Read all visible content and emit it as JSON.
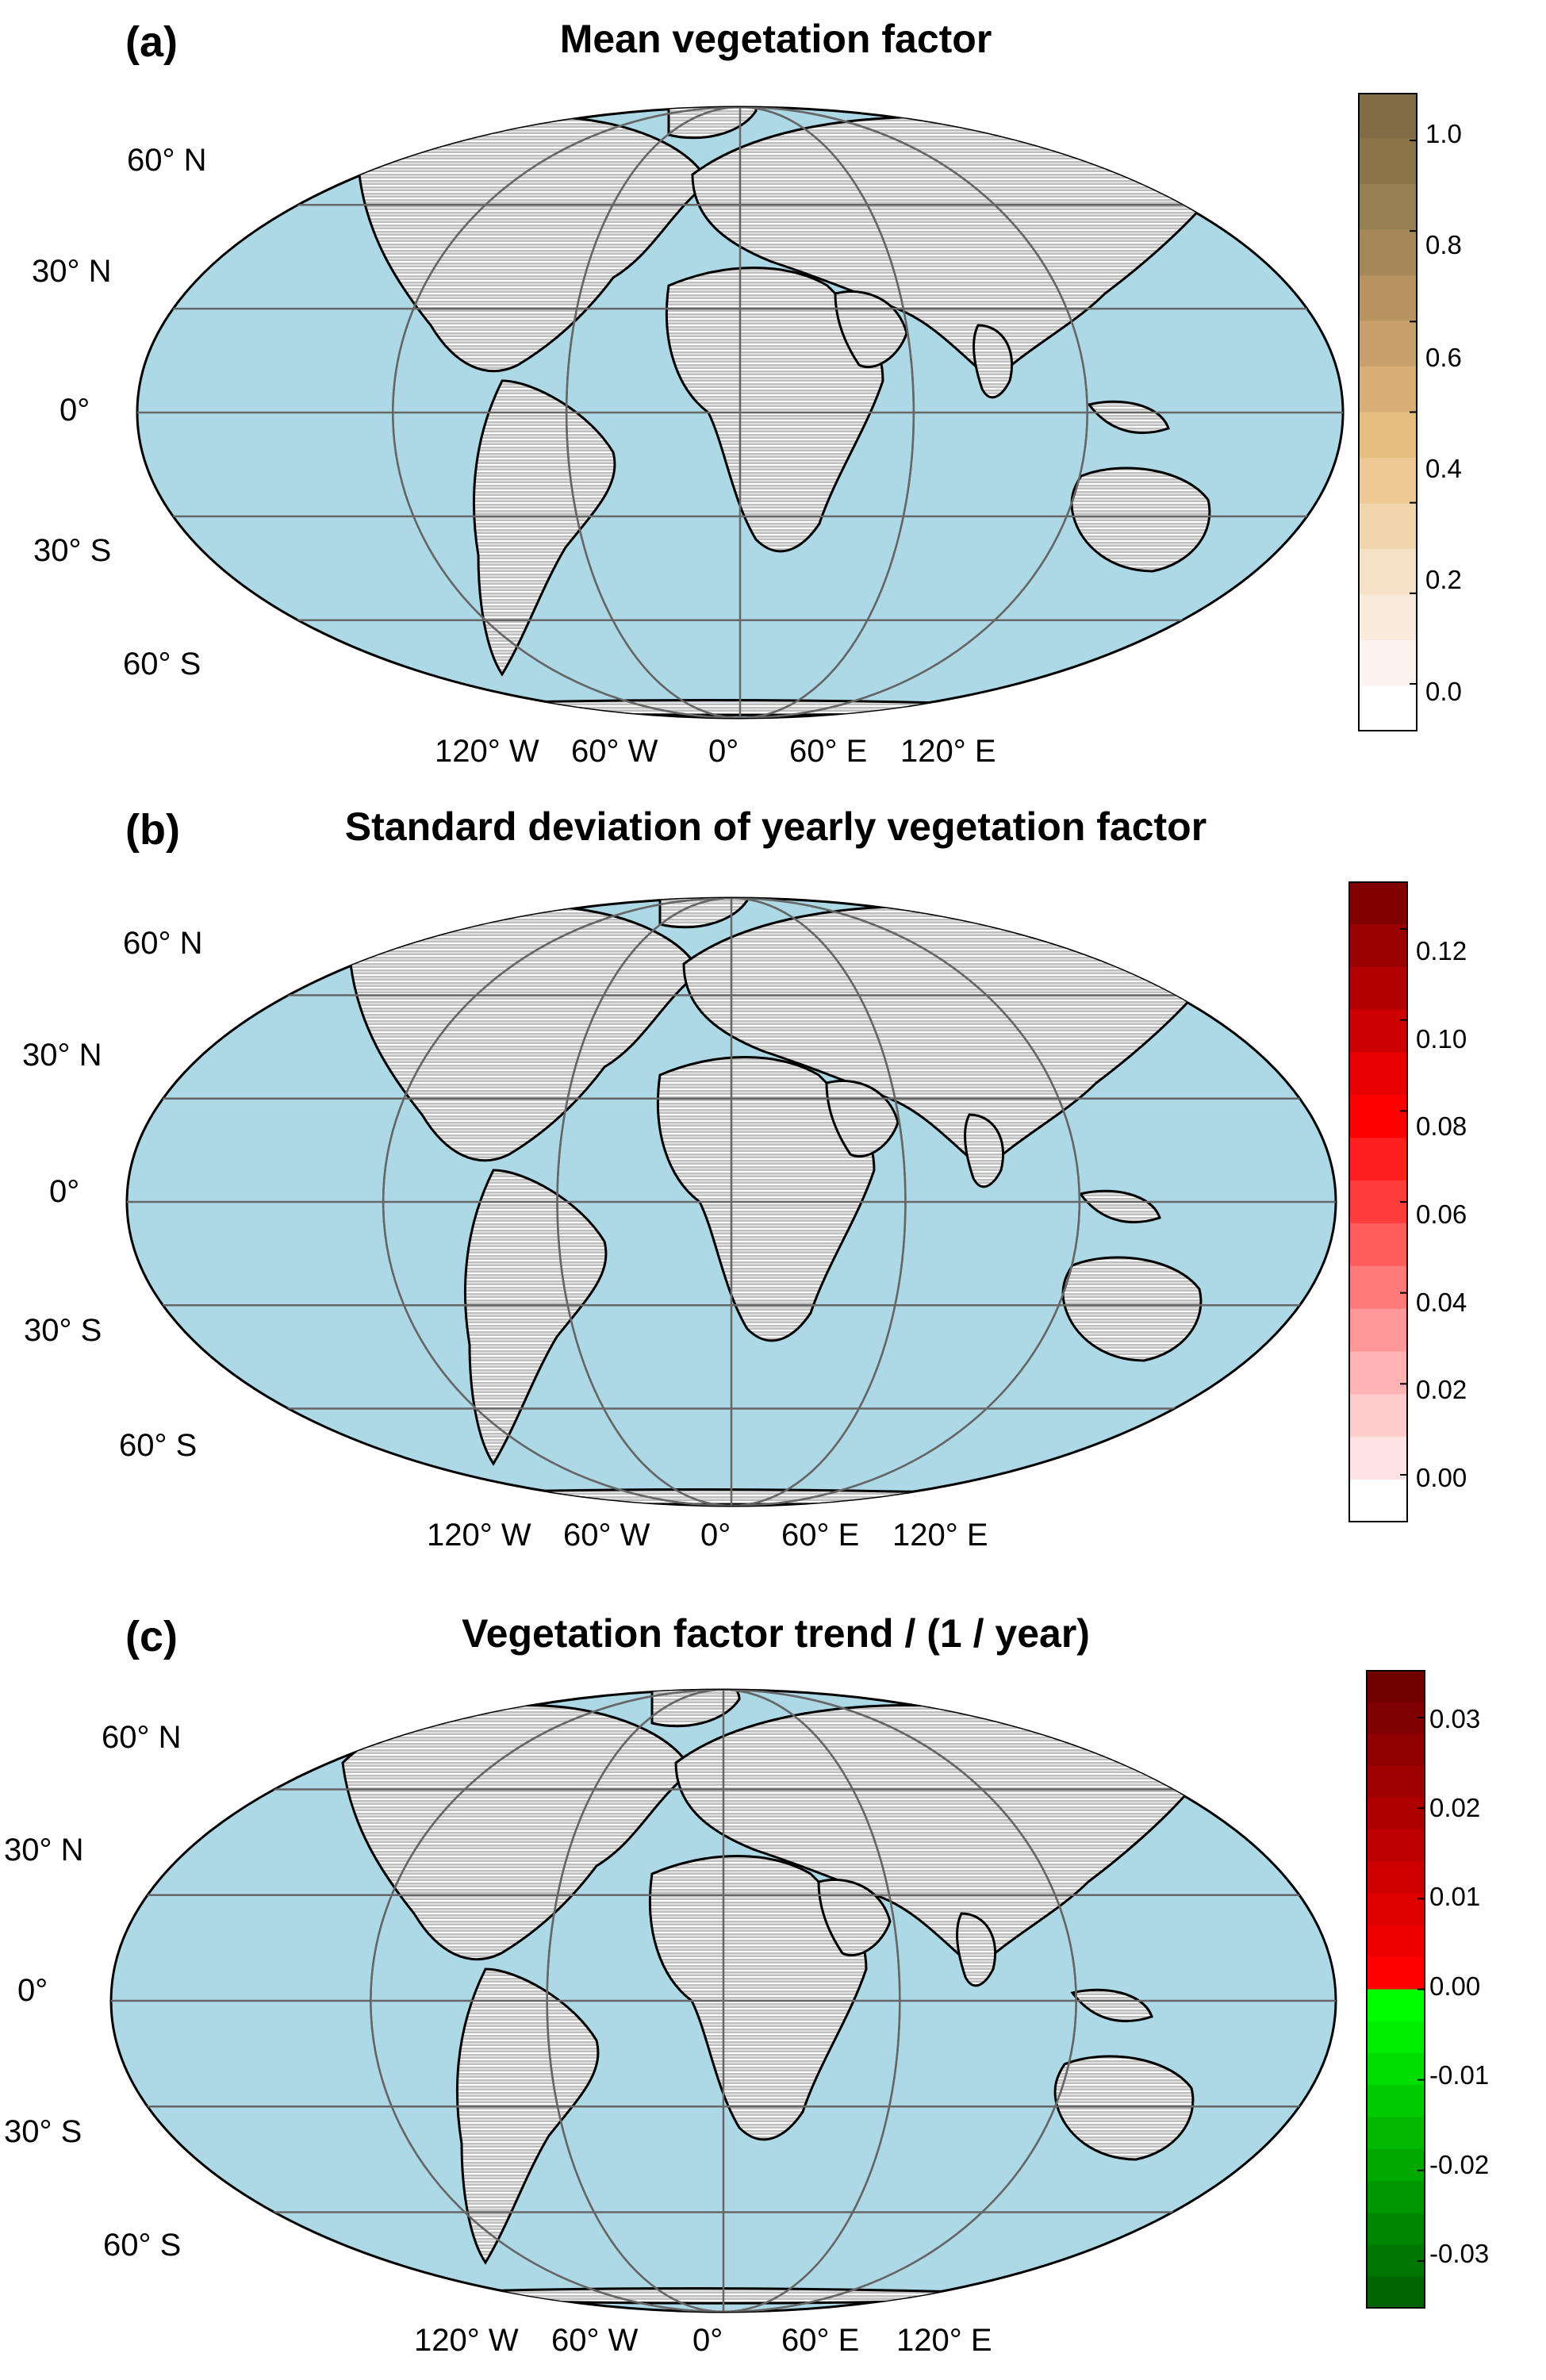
{
  "panels": [
    {
      "letter": "(a)",
      "title": "Mean vegetation factor",
      "lat_labels": [
        "60° N",
        "30° N",
        "0°",
        "30° S",
        "60° S"
      ],
      "lon_labels": [
        "120° W",
        "60° W",
        "0°",
        "60° E",
        "120° E"
      ],
      "colorbar": {
        "ticks": [
          "1.0",
          "0.8",
          "0.6",
          "0.4",
          "0.2",
          "0.0"
        ],
        "colors": [
          "#ffffff",
          "#fbf3ec",
          "#f8ebdb",
          "#f5e1c6",
          "#f1d5ad",
          "#edc993",
          "#e6be7f",
          "#d9ae76",
          "#c8a06c",
          "#b7935f",
          "#a6875a",
          "#978052",
          "#8b7448",
          "#806c45"
        ]
      }
    },
    {
      "letter": "(b)",
      "title": "Standard deviation of yearly vegetation factor",
      "lat_labels": [
        "60° N",
        "30° N",
        "0°",
        "30° S",
        "60° S"
      ],
      "lon_labels": [
        "120° W",
        "60° W",
        "0°",
        "60° E",
        "120° E"
      ],
      "colorbar": {
        "ticks": [
          "0.12",
          "0.10",
          "0.08",
          "0.06",
          "0.04",
          "0.02",
          "0.00"
        ],
        "colors": [
          "#ffffff",
          "#ffe3e3",
          "#ffcccc",
          "#ffb3b3",
          "#ff9999",
          "#ff7a7a",
          "#ff5c5c",
          "#ff3d3d",
          "#ff1f1f",
          "#ff0000",
          "#e60000",
          "#cc0000",
          "#b30000",
          "#990000",
          "#800000"
        ]
      }
    },
    {
      "letter": "(c)",
      "title": "Vegetation factor trend / (1 / year)",
      "lat_labels": [
        "60° N",
        "30° N",
        "0°",
        "30° S",
        "60° S"
      ],
      "lon_labels": [
        "120° W",
        "60° W",
        "0°",
        "60° E",
        "120° E"
      ],
      "colorbar": {
        "ticks": [
          "0.03",
          "0.02",
          "0.01",
          "0.00",
          "-0.01",
          "-0.02",
          "-0.03"
        ],
        "colors": [
          "#006400",
          "#007500",
          "#008600",
          "#009700",
          "#00a800",
          "#00b900",
          "#00ca00",
          "#00db00",
          "#00ec00",
          "#00fd00",
          "#ff0000",
          "#ef0000",
          "#df0000",
          "#cf0000",
          "#bf0000",
          "#af0000",
          "#9f0000",
          "#8f0000",
          "#7f0000",
          "#700000"
        ]
      }
    }
  ],
  "colors": {
    "ocean": "#add8e6",
    "land": "#bebebe",
    "hatch": "#ffffff",
    "grid": "#666666"
  }
}
